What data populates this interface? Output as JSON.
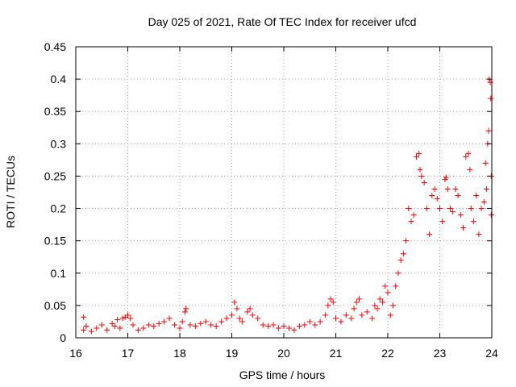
{
  "chart_data": {
    "type": "scatter",
    "title": "Day 025 of 2021, Rate Of TEC Index for receiver ufcd",
    "xlabel": "GPS time / hours",
    "ylabel": "ROTI / TECUs",
    "xlim": [
      16,
      24
    ],
    "ylim": [
      0,
      0.45
    ],
    "x_ticks": [
      "16",
      "17",
      "18",
      "19",
      "20",
      "21",
      "22",
      "23",
      "24"
    ],
    "y_ticks": [
      "0",
      "0.05",
      "0.1",
      "0.15",
      "0.2",
      "0.25",
      "0.3",
      "0.35",
      "0.4",
      "0.45"
    ],
    "grid": true,
    "marker": "+",
    "color": "#ff0000",
    "series": [
      {
        "name": "ROTI",
        "points": [
          [
            16.15,
            0.032
          ],
          [
            16.15,
            0.012
          ],
          [
            16.2,
            0.018
          ],
          [
            16.3,
            0.01
          ],
          [
            16.4,
            0.015
          ],
          [
            16.5,
            0.02
          ],
          [
            16.6,
            0.012
          ],
          [
            16.7,
            0.022
          ],
          [
            16.75,
            0.018
          ],
          [
            16.8,
            0.028
          ],
          [
            16.85,
            0.015
          ],
          [
            16.9,
            0.03
          ],
          [
            16.95,
            0.032
          ],
          [
            17.0,
            0.035
          ],
          [
            17.05,
            0.03
          ],
          [
            17.1,
            0.02
          ],
          [
            17.2,
            0.012
          ],
          [
            17.3,
            0.015
          ],
          [
            17.4,
            0.02
          ],
          [
            17.5,
            0.018
          ],
          [
            17.6,
            0.022
          ],
          [
            17.7,
            0.025
          ],
          [
            17.8,
            0.03
          ],
          [
            17.9,
            0.02
          ],
          [
            18.0,
            0.015
          ],
          [
            18.05,
            0.025
          ],
          [
            18.1,
            0.04
          ],
          [
            18.12,
            0.045
          ],
          [
            18.2,
            0.02
          ],
          [
            18.3,
            0.018
          ],
          [
            18.4,
            0.022
          ],
          [
            18.5,
            0.025
          ],
          [
            18.6,
            0.02
          ],
          [
            18.7,
            0.018
          ],
          [
            18.8,
            0.025
          ],
          [
            18.9,
            0.03
          ],
          [
            19.0,
            0.035
          ],
          [
            19.05,
            0.055
          ],
          [
            19.1,
            0.045
          ],
          [
            19.15,
            0.03
          ],
          [
            19.2,
            0.025
          ],
          [
            19.3,
            0.04
          ],
          [
            19.35,
            0.045
          ],
          [
            19.4,
            0.035
          ],
          [
            19.5,
            0.03
          ],
          [
            19.6,
            0.02
          ],
          [
            19.7,
            0.018
          ],
          [
            19.8,
            0.02
          ],
          [
            19.9,
            0.015
          ],
          [
            20.0,
            0.018
          ],
          [
            20.1,
            0.015
          ],
          [
            20.2,
            0.012
          ],
          [
            20.3,
            0.018
          ],
          [
            20.4,
            0.02
          ],
          [
            20.5,
            0.025
          ],
          [
            20.6,
            0.02
          ],
          [
            20.7,
            0.025
          ],
          [
            20.8,
            0.035
          ],
          [
            20.85,
            0.05
          ],
          [
            20.9,
            0.06
          ],
          [
            20.95,
            0.055
          ],
          [
            21.0,
            0.03
          ],
          [
            21.1,
            0.025
          ],
          [
            21.2,
            0.035
          ],
          [
            21.3,
            0.03
          ],
          [
            21.35,
            0.045
          ],
          [
            21.4,
            0.055
          ],
          [
            21.45,
            0.06
          ],
          [
            21.5,
            0.035
          ],
          [
            21.6,
            0.04
          ],
          [
            21.7,
            0.03
          ],
          [
            21.75,
            0.05
          ],
          [
            21.8,
            0.045
          ],
          [
            21.85,
            0.06
          ],
          [
            21.9,
            0.055
          ],
          [
            21.95,
            0.08
          ],
          [
            22.0,
            0.07
          ],
          [
            22.05,
            0.035
          ],
          [
            22.1,
            0.05
          ],
          [
            22.15,
            0.08
          ],
          [
            22.2,
            0.1
          ],
          [
            22.25,
            0.12
          ],
          [
            22.3,
            0.13
          ],
          [
            22.35,
            0.15
          ],
          [
            22.4,
            0.2
          ],
          [
            22.45,
            0.18
          ],
          [
            22.5,
            0.19
          ],
          [
            22.55,
            0.28
          ],
          [
            22.6,
            0.285
          ],
          [
            22.62,
            0.26
          ],
          [
            22.65,
            0.25
          ],
          [
            22.7,
            0.24
          ],
          [
            22.75,
            0.2
          ],
          [
            22.8,
            0.16
          ],
          [
            22.85,
            0.22
          ],
          [
            22.9,
            0.23
          ],
          [
            22.95,
            0.215
          ],
          [
            23.0,
            0.2
          ],
          [
            23.05,
            0.18
          ],
          [
            23.1,
            0.245
          ],
          [
            23.12,
            0.248
          ],
          [
            23.15,
            0.23
          ],
          [
            23.2,
            0.2
          ],
          [
            23.25,
            0.195
          ],
          [
            23.3,
            0.23
          ],
          [
            23.35,
            0.22
          ],
          [
            23.4,
            0.19
          ],
          [
            23.45,
            0.17
          ],
          [
            23.5,
            0.28
          ],
          [
            23.55,
            0.285
          ],
          [
            23.58,
            0.26
          ],
          [
            23.6,
            0.2
          ],
          [
            23.65,
            0.18
          ],
          [
            23.7,
            0.22
          ],
          [
            23.75,
            0.16
          ],
          [
            23.8,
            0.2
          ],
          [
            23.85,
            0.21
          ],
          [
            23.88,
            0.27
          ],
          [
            23.9,
            0.23
          ],
          [
            23.92,
            0.3
          ],
          [
            23.94,
            0.32
          ],
          [
            23.95,
            0.4
          ],
          [
            23.97,
            0.395
          ],
          [
            23.98,
            0.37
          ],
          [
            23.99,
            0.25
          ],
          [
            23.99,
            0.19
          ]
        ]
      }
    ]
  }
}
